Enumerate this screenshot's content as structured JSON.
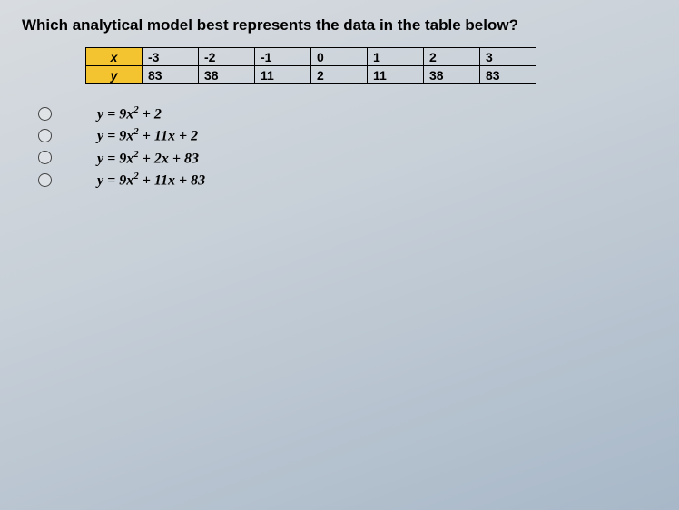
{
  "question": "Which analytical model best represents the data in the table below?",
  "table": {
    "header_bg": "#f4c430",
    "row1_label": "x",
    "row2_label": "y",
    "x_values": [
      "-3",
      "-2",
      "-1",
      "0",
      "1",
      "2",
      "3"
    ],
    "y_values": [
      "83",
      "38",
      "11",
      "2",
      "11",
      "38",
      "83"
    ]
  },
  "options": {
    "a": "y = 9x² + 2",
    "b": "y = 9x² + 11x + 2",
    "c": "y = 9x² + 2x + 83",
    "d": "y = 9x² + 11x + 83"
  }
}
